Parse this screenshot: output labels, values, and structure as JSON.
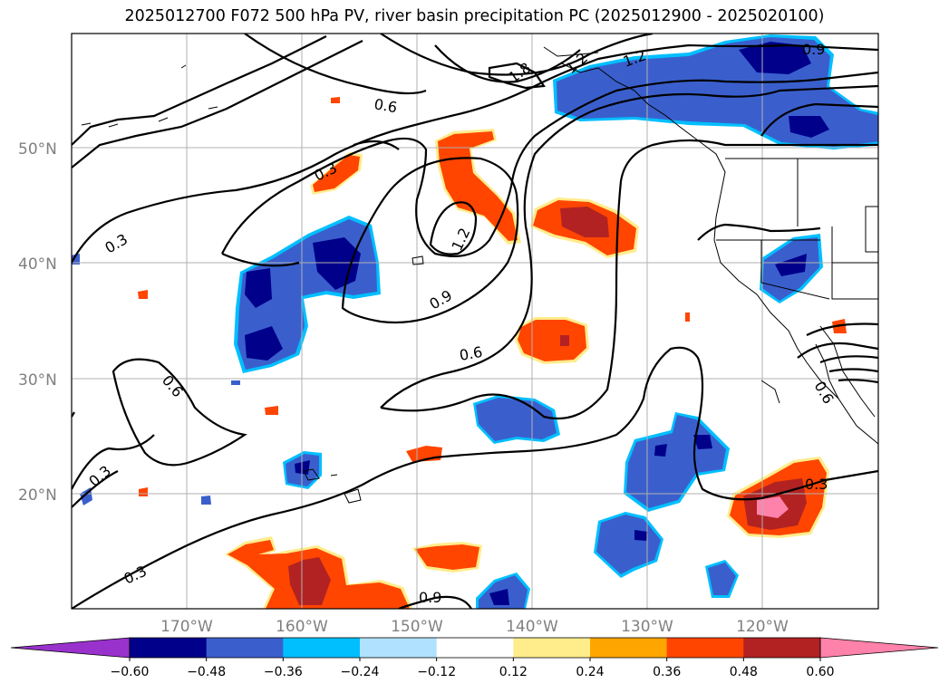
{
  "title": "2025012700 F072 500 hPa PV, river basin precipitation PC (2025012900 - 2025020100)",
  "lat_labels": [
    "50°N",
    "40°N",
    "30°N",
    "20°N"
  ],
  "lon_labels": [
    "170°W",
    "160°W",
    "150°W",
    "140°W",
    "130°W",
    "120°W"
  ],
  "contour_labels": [
    "1.8",
    "1.2",
    "1.2",
    "0.9",
    "0.6",
    "0.3",
    "1.2",
    "0.3",
    "0.9",
    "0.6",
    "0.6",
    "0.3",
    "0.3",
    "0.3",
    "0.9",
    "0.6"
  ],
  "colorbar": {
    "colors": [
      "#9932cc",
      "#00008b",
      "#3a5fcd",
      "#00bfff",
      "#b0e2ff",
      "#ffffff",
      "#ffec8b",
      "#ffa500",
      "#ff4500",
      "#b22222",
      "#ff82ab"
    ],
    "ticks": [
      "−0.60",
      "−0.48",
      "−0.36",
      "−0.24",
      "−0.12",
      "0.12",
      "0.24",
      "0.36",
      "0.48",
      "0.60"
    ]
  }
}
